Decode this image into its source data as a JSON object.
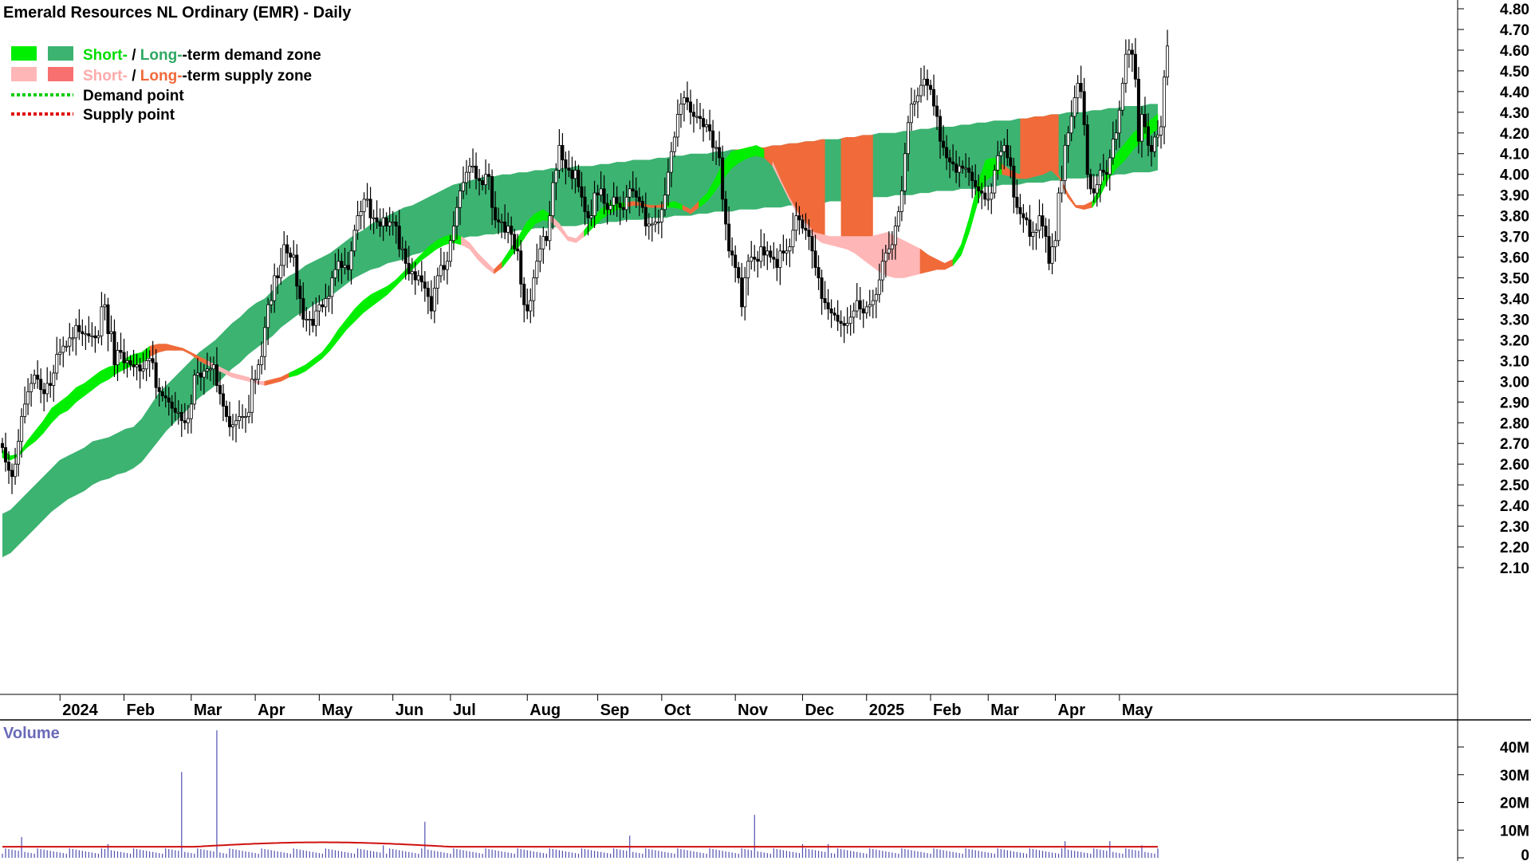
{
  "title": "Emerald Resources NL Ordinary (EMR) - Daily",
  "legend": [
    {
      "key": "demand_zone",
      "label_a": "Short-",
      "sep": " / ",
      "label_b": "Long-",
      "rest": "-term demand zone",
      "color_a": "#00ee00",
      "color_b": "#3cb371",
      "swatch_a": "#00ee00",
      "swatch_b": "#3cb371"
    },
    {
      "key": "supply_zone",
      "label_a": "Short-",
      "sep": " / ",
      "label_b": "Long-",
      "rest": "-term supply zone",
      "color_a": "#ffb6b6",
      "color_b": "#f06a3a",
      "swatch_a": "#ffb6b6",
      "swatch_b": "#f87070"
    },
    {
      "key": "demand_point",
      "label": "Demand point",
      "color": "#00cc00"
    },
    {
      "key": "supply_point",
      "label": "Supply point",
      "color": "#e00000"
    }
  ],
  "volume_label": "Volume",
  "chart_data": {
    "type": "candlestick",
    "title": "Emerald Resources NL Ordinary (EMR) - Daily",
    "y_axis_side": "right",
    "ylim": [
      2.05,
      4.83
    ],
    "y_ticks": [
      "4.80",
      "4.70",
      "4.60",
      "4.50",
      "4.40",
      "4.30",
      "4.20",
      "4.10",
      "4.00",
      "3.90",
      "3.80",
      "3.70",
      "3.60",
      "3.50",
      "3.40",
      "3.30",
      "3.20",
      "3.10",
      "3.00",
      "2.90",
      "2.80",
      "2.70",
      "2.60",
      "2.50",
      "2.40",
      "2.30",
      "2.20",
      "2.10"
    ],
    "x_ticks": [
      "2024",
      "Feb",
      "Mar",
      "Apr",
      "May",
      "Jun",
      "Jul",
      "Aug",
      "Sep",
      "Oct",
      "Nov",
      "Dec",
      "2025",
      "Feb",
      "Mar",
      "Apr",
      "May"
    ],
    "x_tick_index": [
      18,
      38,
      59,
      79,
      99,
      122,
      140,
      164,
      186,
      206,
      229,
      250,
      270,
      290,
      308,
      329,
      349
    ],
    "n_days": 362,
    "close": [
      2.68,
      2.61,
      2.57,
      2.54,
      2.6,
      2.71,
      2.83,
      2.89,
      2.95,
      2.99,
      3.03,
      3.01,
      2.96,
      2.94,
      2.99,
      2.98,
      3.04,
      3.13,
      3.14,
      3.17,
      3.17,
      3.21,
      3.21,
      3.27,
      3.24,
      3.23,
      3.23,
      3.22,
      3.22,
      3.21,
      3.22,
      3.36,
      3.37,
      3.23,
      3.24,
      3.08,
      3.15,
      3.14,
      3.09,
      3.1,
      3.08,
      3.07,
      3.08,
      3.05,
      3.06,
      3.1,
      3.11,
      3.09,
      2.97,
      2.95,
      2.93,
      2.92,
      2.9,
      2.87,
      2.85,
      2.85,
      2.81,
      2.8,
      2.82,
      2.89,
      3.03,
      3.04,
      3.02,
      3.05,
      3.06,
      3.06,
      3.08,
      2.98,
      2.94,
      2.88,
      2.83,
      2.78,
      2.79,
      2.81,
      2.83,
      2.83,
      2.83,
      2.85,
      3.01,
      3.01,
      3.08,
      3.12,
      3.26,
      3.37,
      3.39,
      3.51,
      3.5,
      3.56,
      3.66,
      3.62,
      3.6,
      3.61,
      3.46,
      3.4,
      3.3,
      3.3,
      3.3,
      3.27,
      3.34,
      3.37,
      3.36,
      3.4,
      3.41,
      3.5,
      3.54,
      3.58,
      3.55,
      3.56,
      3.54,
      3.63,
      3.73,
      3.8,
      3.82,
      3.88,
      3.88,
      3.79,
      3.79,
      3.77,
      3.75,
      3.79,
      3.75,
      3.77,
      3.77,
      3.75,
      3.64,
      3.64,
      3.57,
      3.52,
      3.53,
      3.49,
      3.51,
      3.48,
      3.45,
      3.41,
      3.34,
      3.45,
      3.51,
      3.56,
      3.54,
      3.58,
      3.68,
      3.75,
      3.84,
      3.92,
      3.96,
      4.01,
      4.04,
      4.04,
      3.98,
      3.97,
      3.95,
      4.0,
      3.99,
      3.84,
      3.78,
      3.77,
      3.77,
      3.72,
      3.75,
      3.71,
      3.64,
      3.63,
      3.47,
      3.37,
      3.34,
      3.39,
      3.5,
      3.58,
      3.64,
      3.7,
      3.68,
      3.8,
      3.96,
      4.02,
      4.14,
      4.07,
      4.03,
      4.02,
      3.98,
      4.02,
      3.94,
      3.89,
      3.82,
      3.79,
      3.8,
      3.91,
      3.9,
      3.93,
      3.86,
      3.83,
      3.85,
      3.89,
      3.86,
      3.84,
      3.83,
      3.89,
      3.93,
      3.92,
      3.89,
      3.87,
      3.84,
      3.75,
      3.76,
      3.76,
      3.77,
      3.77,
      3.83,
      3.9,
      4.01,
      4.11,
      4.18,
      4.29,
      4.34,
      4.37,
      4.35,
      4.3,
      4.28,
      4.28,
      4.27,
      4.23,
      4.24,
      4.21,
      4.13,
      4.13,
      4.08,
      3.88,
      3.76,
      3.63,
      3.61,
      3.55,
      3.5,
      3.36,
      3.5,
      3.58,
      3.6,
      3.59,
      3.58,
      3.65,
      3.61,
      3.63,
      3.6,
      3.59,
      3.55,
      3.63,
      3.62,
      3.63,
      3.65,
      3.73,
      3.8,
      3.78,
      3.74,
      3.73,
      3.7,
      3.63,
      3.55,
      3.5,
      3.4,
      3.38,
      3.35,
      3.33,
      3.32,
      3.29,
      3.28,
      3.27,
      3.28,
      3.31,
      3.34,
      3.39,
      3.35,
      3.33,
      3.36,
      3.37,
      3.39,
      3.42,
      3.49,
      3.58,
      3.62,
      3.64,
      3.66,
      3.75,
      3.82,
      3.92,
      4.1,
      4.25,
      4.34,
      4.35,
      4.38,
      4.43,
      4.46,
      4.43,
      4.41,
      4.33,
      4.28,
      4.16,
      4.13,
      4.08,
      4.06,
      4.05,
      4.01,
      4.04,
      4.03,
      4.03,
      4.01,
      3.97,
      3.94,
      3.92,
      3.91,
      3.88,
      3.88,
      3.91,
      4.02,
      4.09,
      4.11,
      4.14,
      4.08,
      4.04,
      3.89,
      3.84,
      3.81,
      3.79,
      3.78,
      3.7,
      3.72,
      3.73,
      3.8,
      3.75,
      3.7,
      3.57,
      3.65,
      3.68,
      3.91,
      3.97,
      4.14,
      4.2,
      4.28,
      4.37,
      4.44,
      4.4,
      4.24,
      4.0,
      3.93,
      3.91,
      3.95,
      4.02,
      4.01,
      4.0,
      4.08,
      4.17,
      4.2,
      4.31,
      4.44,
      4.58,
      4.6,
      4.58,
      4.46,
      4.16,
      4.29,
      4.23,
      4.14,
      4.11,
      4.18,
      4.19,
      4.23,
      4.47,
      4.62
    ],
    "wick": 0.09,
    "short_band_top": [
      2.67,
      2.64,
      2.65,
      2.71,
      2.76,
      2.81,
      2.87,
      2.9,
      2.93,
      2.97,
      2.99,
      3.02,
      3.05,
      3.07,
      3.08,
      3.11,
      3.13,
      3.14,
      3.17,
      3.18,
      3.18,
      3.17,
      3.16,
      3.14,
      3.12,
      3.1,
      3.08,
      3.06,
      3.04,
      3.03,
      3.02,
      3.0,
      3.0,
      3.01,
      3.02,
      3.04,
      3.06,
      3.08,
      3.11,
      3.14,
      3.19,
      3.25,
      3.3,
      3.35,
      3.39,
      3.42,
      3.44,
      3.46,
      3.49,
      3.53,
      3.57,
      3.61,
      3.65,
      3.68,
      3.7,
      3.71,
      3.7,
      3.67,
      3.62,
      3.58,
      3.54,
      3.58,
      3.64,
      3.7,
      3.77,
      3.81,
      3.83,
      3.8,
      3.76,
      3.7,
      3.69,
      3.73,
      3.78,
      3.83,
      3.86,
      3.87,
      3.86,
      3.87,
      3.86,
      3.85,
      3.85,
      3.86,
      3.87,
      3.85,
      3.83,
      3.87,
      3.91,
      3.98,
      4.06,
      4.11,
      4.12,
      4.13,
      4.14,
      4.12,
      4.06,
      3.97,
      3.89,
      3.82,
      3.77,
      3.72,
      3.71,
      3.7,
      3.7,
      3.7,
      3.7,
      3.7,
      3.7,
      3.71,
      3.72,
      3.7,
      3.68,
      3.66,
      3.64,
      3.61,
      3.59,
      3.57,
      3.59,
      3.66,
      3.79,
      3.95,
      4.07,
      4.08,
      4.05,
      4.02,
      4.0,
      4.01,
      4.02,
      4.03,
      4.06,
      3.99,
      3.91,
      3.85,
      3.85,
      3.87,
      3.94,
      4.04,
      4.1,
      4.15,
      4.2,
      4.23,
      4.26,
      4.29
    ],
    "short_band_bottom": [
      2.63,
      2.62,
      2.64,
      2.68,
      2.71,
      2.75,
      2.8,
      2.84,
      2.86,
      2.9,
      2.93,
      2.96,
      2.99,
      3.01,
      3.04,
      3.06,
      3.08,
      3.09,
      3.12,
      3.14,
      3.15,
      3.15,
      3.15,
      3.13,
      3.1,
      3.08,
      3.06,
      3.04,
      3.02,
      3.01,
      3.0,
      2.99,
      2.98,
      2.99,
      3.0,
      3.02,
      3.03,
      3.05,
      3.08,
      3.11,
      3.15,
      3.2,
      3.25,
      3.29,
      3.33,
      3.36,
      3.39,
      3.42,
      3.46,
      3.5,
      3.54,
      3.58,
      3.61,
      3.64,
      3.66,
      3.67,
      3.66,
      3.64,
      3.59,
      3.55,
      3.52,
      3.55,
      3.6,
      3.65,
      3.71,
      3.76,
      3.78,
      3.77,
      3.73,
      3.68,
      3.67,
      3.7,
      3.74,
      3.78,
      3.81,
      3.83,
      3.84,
      3.85,
      3.85,
      3.84,
      3.84,
      3.84,
      3.84,
      3.83,
      3.81,
      3.84,
      3.87,
      3.92,
      3.98,
      4.03,
      4.06,
      4.08,
      4.09,
      4.08,
      4.04,
      3.96,
      3.88,
      3.81,
      3.76,
      3.7,
      3.67,
      3.66,
      3.65,
      3.64,
      3.62,
      3.59,
      3.56,
      3.53,
      3.51,
      3.5,
      3.5,
      3.51,
      3.52,
      3.53,
      3.54,
      3.54,
      3.56,
      3.61,
      3.72,
      3.86,
      3.97,
      4.0,
      4.0,
      3.99,
      3.98,
      3.98,
      3.99,
      4.0,
      4.02,
      3.98,
      3.89,
      3.84,
      3.83,
      3.84,
      3.9,
      3.98,
      4.03,
      4.07,
      4.12,
      4.16,
      4.19,
      4.22
    ],
    "short_band_state": [
      "d",
      "d",
      "d",
      "d",
      "d",
      "d",
      "d",
      "d",
      "d",
      "d",
      "d",
      "d",
      "d",
      "d",
      "d",
      "d",
      "d",
      "d",
      "s",
      "s",
      "s",
      "s",
      "s",
      "s",
      "s",
      "s",
      "s",
      "s",
      "s",
      "s",
      "s",
      "s",
      "s",
      "s",
      "s",
      "d",
      "d",
      "d",
      "d",
      "d",
      "d",
      "d",
      "d",
      "d",
      "d",
      "d",
      "d",
      "d",
      "d",
      "d",
      "d",
      "d",
      "d",
      "d",
      "d",
      "d",
      "s",
      "s",
      "s",
      "s",
      "s",
      "d",
      "d",
      "d",
      "d",
      "d",
      "d",
      "s",
      "s",
      "s",
      "s",
      "d",
      "d",
      "d",
      "d",
      "d",
      "s",
      "s",
      "s",
      "s",
      "s",
      "d",
      "d",
      "s",
      "s",
      "d",
      "d",
      "d",
      "d",
      "d",
      "d",
      "d",
      "d",
      "s",
      "s",
      "s",
      "s",
      "s",
      "s",
      "s",
      "s",
      "s",
      "s",
      "s",
      "s",
      "s",
      "s",
      "s",
      "s",
      "s",
      "s",
      "s",
      "s",
      "s",
      "s",
      "s",
      "d",
      "d",
      "d",
      "d",
      "d",
      "d",
      "s",
      "s",
      "s",
      "s",
      "s",
      "s",
      "s",
      "s",
      "s",
      "s",
      "s",
      "d",
      "d",
      "d",
      "d",
      "d",
      "d",
      "d",
      "d",
      "d",
      "d",
      "d"
    ],
    "long_band_top": [
      2.36,
      2.38,
      2.42,
      2.46,
      2.5,
      2.54,
      2.58,
      2.62,
      2.64,
      2.66,
      2.68,
      2.71,
      2.72,
      2.73,
      2.75,
      2.77,
      2.78,
      2.82,
      2.88,
      2.94,
      2.98,
      3.02,
      3.06,
      3.1,
      3.14,
      3.17,
      3.2,
      3.24,
      3.28,
      3.31,
      3.35,
      3.38,
      3.4,
      3.44,
      3.48,
      3.51,
      3.53,
      3.56,
      3.58,
      3.6,
      3.62,
      3.65,
      3.68,
      3.71,
      3.73,
      3.76,
      3.78,
      3.8,
      3.82,
      3.84,
      3.85,
      3.87,
      3.89,
      3.91,
      3.93,
      3.95,
      3.96,
      3.97,
      3.98,
      3.99,
      3.99,
      4.0,
      4.0,
      4.01,
      4.01,
      4.02,
      4.02,
      4.03,
      4.03,
      4.03,
      4.04,
      4.04,
      4.04,
      4.05,
      4.05,
      4.06,
      4.06,
      4.07,
      4.07,
      4.07,
      4.08,
      4.08,
      4.09,
      4.09,
      4.1,
      4.1,
      4.1,
      4.11,
      4.11,
      4.12,
      4.12,
      4.13,
      4.13,
      4.13,
      4.14,
      4.14,
      4.15,
      4.15,
      4.16,
      4.16,
      4.17,
      4.17,
      4.17,
      4.18,
      4.18,
      4.19,
      4.19,
      4.2,
      4.2,
      4.2,
      4.21,
      4.21,
      4.22,
      4.22,
      4.23,
      4.23,
      4.23,
      4.24,
      4.24,
      4.25,
      4.25,
      4.26,
      4.26,
      4.26,
      4.27,
      4.27,
      4.28,
      4.28,
      4.29,
      4.29,
      4.3,
      4.3,
      4.3,
      4.31,
      4.31,
      4.32,
      4.32,
      4.33,
      4.33,
      4.33,
      4.34,
      4.34
    ],
    "long_band_bottom": [
      2.15,
      2.17,
      2.21,
      2.25,
      2.29,
      2.33,
      2.37,
      2.4,
      2.43,
      2.45,
      2.47,
      2.5,
      2.52,
      2.53,
      2.55,
      2.56,
      2.58,
      2.61,
      2.66,
      2.71,
      2.76,
      2.8,
      2.84,
      2.88,
      2.92,
      2.95,
      2.98,
      3.02,
      3.06,
      3.09,
      3.13,
      3.16,
      3.19,
      3.22,
      3.26,
      3.29,
      3.32,
      3.34,
      3.37,
      3.39,
      3.41,
      3.44,
      3.47,
      3.5,
      3.52,
      3.54,
      3.55,
      3.57,
      3.58,
      3.59,
      3.61,
      3.62,
      3.64,
      3.66,
      3.67,
      3.68,
      3.69,
      3.7,
      3.7,
      3.71,
      3.71,
      3.72,
      3.72,
      3.73,
      3.73,
      3.74,
      3.74,
      3.74,
      3.75,
      3.75,
      3.75,
      3.76,
      3.76,
      3.76,
      3.77,
      3.77,
      3.78,
      3.78,
      3.78,
      3.79,
      3.79,
      3.79,
      3.8,
      3.8,
      3.8,
      3.81,
      3.81,
      3.82,
      3.82,
      3.82,
      3.83,
      3.83,
      3.83,
      3.84,
      3.84,
      3.84,
      3.85,
      3.85,
      3.86,
      3.86,
      3.86,
      3.87,
      3.87,
      3.87,
      3.88,
      3.88,
      3.89,
      3.89,
      3.89,
      3.9,
      3.9,
      3.9,
      3.91,
      3.91,
      3.92,
      3.92,
      3.92,
      3.93,
      3.93,
      3.93,
      3.94,
      3.94,
      3.95,
      3.95,
      3.95,
      3.96,
      3.96,
      3.96,
      3.97,
      3.97,
      3.98,
      3.98,
      3.98,
      3.99,
      3.99,
      3.99,
      4.0,
      4.0,
      4.01,
      4.01,
      4.01,
      4.02
    ],
    "volume_ylim": [
      0,
      47
    ],
    "volume_unit": "M",
    "volume_ticks": [
      "40M",
      "30M",
      "20M",
      "10M",
      "0"
    ],
    "volume_spikes": [
      {
        "day": 6,
        "value": 7.5
      },
      {
        "day": 33,
        "value": 5
      },
      {
        "day": 56,
        "value": 31
      },
      {
        "day": 67,
        "value": 46
      },
      {
        "day": 119,
        "value": 4.5
      },
      {
        "day": 132,
        "value": 13
      },
      {
        "day": 196,
        "value": 8
      },
      {
        "day": 235,
        "value": 15.5
      },
      {
        "day": 250,
        "value": 5
      },
      {
        "day": 258,
        "value": 5
      },
      {
        "day": 332,
        "value": 6
      },
      {
        "day": 346,
        "value": 6
      },
      {
        "day": 356,
        "value": 4.5
      }
    ],
    "volume_base": 2.5,
    "volume_ma": 4.0
  },
  "colors": {
    "short_demand": "#00ee00",
    "long_demand": "#3cb371",
    "short_supply": "#ffb6b6",
    "long_supply": "#f06a3a",
    "demand_point": "#00cc00",
    "supply_point": "#e00000",
    "volume_bar": "#5050b0",
    "volume_ma": "#d01010",
    "up_candle": "#ffffff",
    "down_candle": "#000000"
  }
}
